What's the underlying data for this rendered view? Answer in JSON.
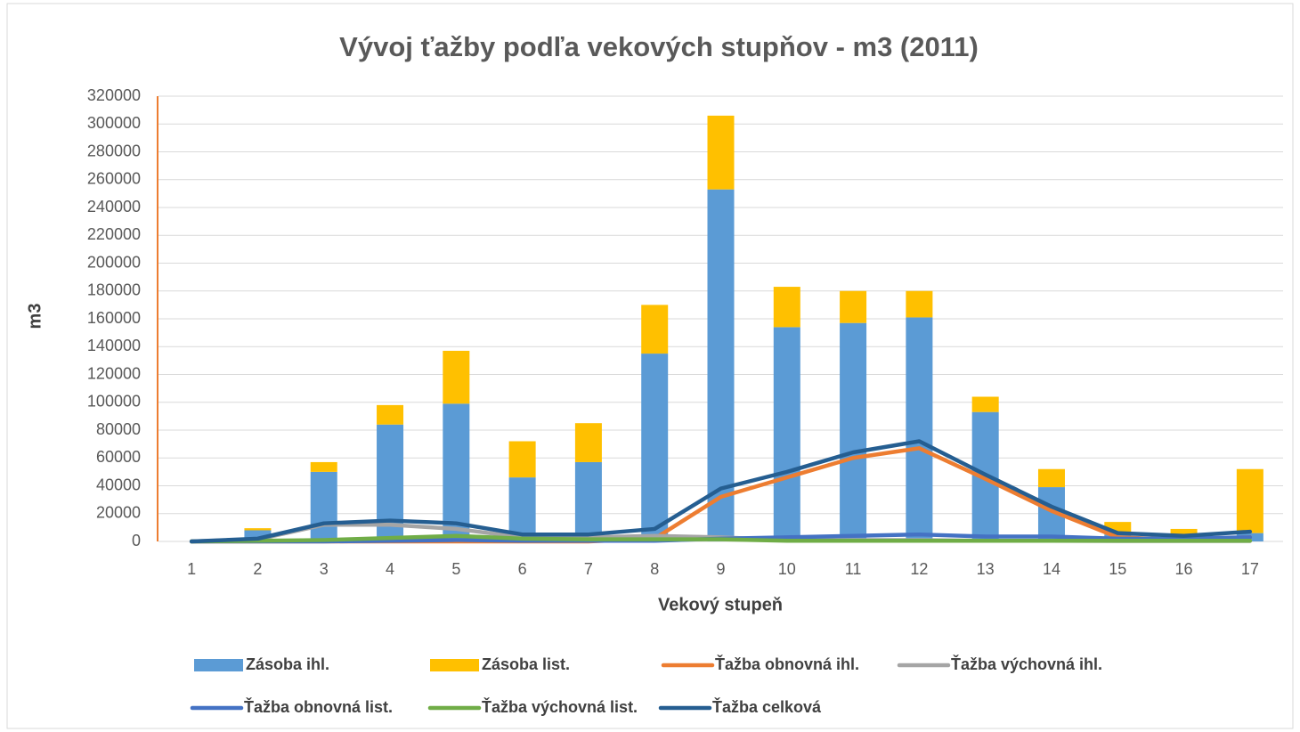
{
  "chart_data": {
    "type": "bar",
    "stacked": true,
    "title": "Vývoj ťažby podľa vekových stupňov - m3 (2011)",
    "x_label": "Vekový stupeň",
    "y_label": "m3",
    "categories": [
      "1",
      "2",
      "3",
      "4",
      "5",
      "6",
      "7",
      "8",
      "9",
      "10",
      "11",
      "12",
      "13",
      "14",
      "15",
      "16",
      "17"
    ],
    "ylim": [
      0,
      320000
    ],
    "yticks": [
      0,
      20000,
      40000,
      60000,
      80000,
      100000,
      120000,
      140000,
      160000,
      180000,
      200000,
      220000,
      240000,
      260000,
      280000,
      300000,
      320000
    ],
    "grid": true,
    "legend": "bottom",
    "series": [
      {
        "name": "Zásoba ihl.",
        "type": "bar",
        "color": "#5b9bd5",
        "values": [
          0,
          8000,
          50000,
          84000,
          99000,
          46000,
          57000,
          135000,
          253000,
          154000,
          157000,
          161000,
          93000,
          39000,
          5000,
          3000,
          6000
        ]
      },
      {
        "name": "Zásoba list.",
        "type": "bar",
        "color": "#ffc000",
        "values": [
          0,
          1500,
          7000,
          14000,
          38000,
          26000,
          28000,
          35000,
          53000,
          29000,
          23000,
          19000,
          11000,
          13000,
          9000,
          6000,
          46000
        ]
      },
      {
        "name": "Ťažba obnovná ihl.",
        "type": "line",
        "color": "#ed7d31",
        "values": [
          0,
          0,
          0,
          0,
          0,
          0,
          0,
          2000,
          32000,
          46000,
          60000,
          67000,
          45000,
          22000,
          3000,
          1000,
          3000
        ]
      },
      {
        "name": "Ťažba výchovná ihl.",
        "type": "line",
        "color": "#a5a5a5",
        "values": [
          0,
          1500,
          12000,
          12000,
          9000,
          3000,
          3000,
          4000,
          3000,
          1000,
          1000,
          1000,
          500,
          500,
          300,
          300,
          300
        ]
      },
      {
        "name": "Ťažba obnovná list.",
        "type": "line",
        "color": "#4472c4",
        "values": [
          0,
          0,
          0,
          500,
          1000,
          500,
          500,
          500,
          2000,
          3000,
          4000,
          5000,
          3500,
          3500,
          2000,
          2000,
          3000
        ]
      },
      {
        "name": "Ťažba výchovná list.",
        "type": "line",
        "color": "#70ad47",
        "values": [
          0,
          500,
          1000,
          2500,
          4000,
          2000,
          1500,
          1500,
          1500,
          500,
          500,
          500,
          500,
          500,
          500,
          500,
          500
        ]
      },
      {
        "name": "Ťažba celková",
        "type": "line",
        "color": "#255e91",
        "values": [
          0,
          2000,
          13000,
          15000,
          13000,
          5000,
          5000,
          9000,
          38000,
          50000,
          64000,
          72000,
          48000,
          25000,
          6000,
          4000,
          7000
        ]
      }
    ]
  }
}
